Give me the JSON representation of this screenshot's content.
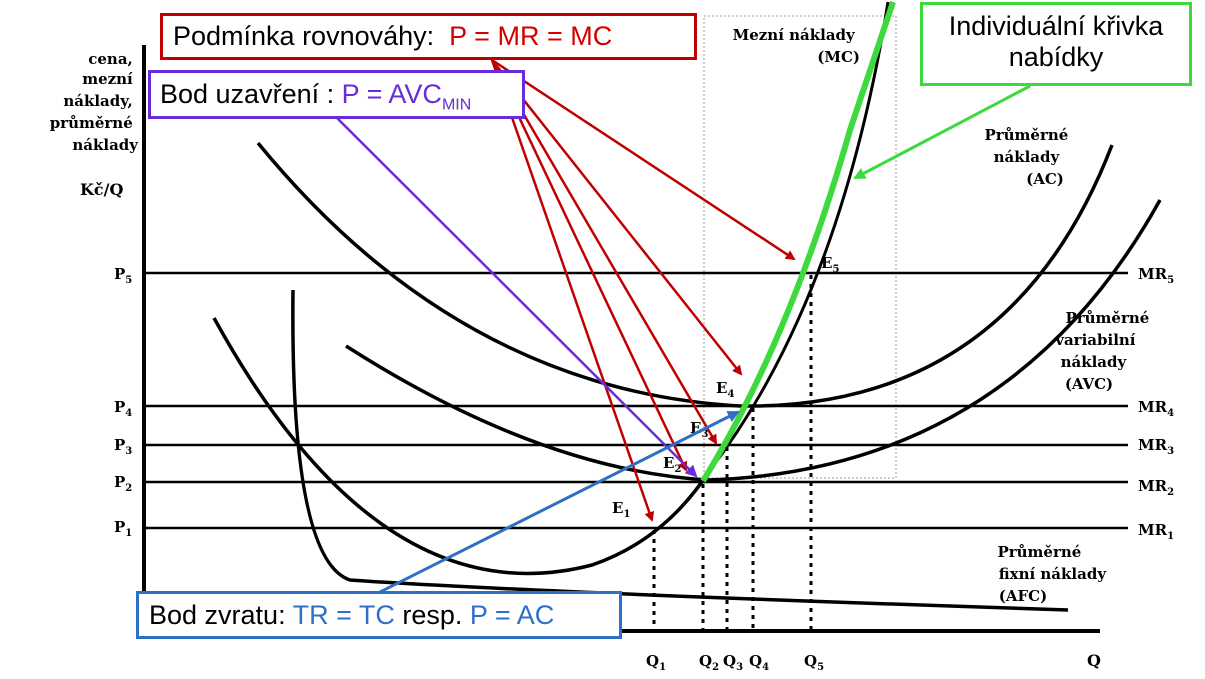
{
  "axes": {
    "y_label": [
      "cena,",
      "mezní",
      "náklady,",
      "průměrné",
      "náklady"
    ],
    "y_unit": "Kč/Q",
    "x_label": "Q"
  },
  "price_levels": [
    {
      "label": "P",
      "sub": "5",
      "mr": "MR",
      "mr_sub": "5",
      "level": 5
    },
    {
      "label": "P",
      "sub": "4",
      "mr": "MR",
      "mr_sub": "4",
      "level": 4
    },
    {
      "label": "P",
      "sub": "3",
      "mr": "MR",
      "mr_sub": "3",
      "level": 3
    },
    {
      "label": "P",
      "sub": "2",
      "mr": "MR",
      "mr_sub": "2",
      "level": 2
    },
    {
      "label": "P",
      "sub": "1",
      "mr": "MR",
      "mr_sub": "1",
      "level": 1
    }
  ],
  "quantities": [
    {
      "label": "Q",
      "sub": "1"
    },
    {
      "label": "Q",
      "sub": "2"
    },
    {
      "label": "Q",
      "sub": "3"
    },
    {
      "label": "Q",
      "sub": "4"
    },
    {
      "label": "Q",
      "sub": "5"
    }
  ],
  "equilibria": [
    {
      "label": "E",
      "sub": "1"
    },
    {
      "label": "E",
      "sub": "2"
    },
    {
      "label": "E",
      "sub": "3"
    },
    {
      "label": "E",
      "sub": "4"
    },
    {
      "label": "E",
      "sub": "5"
    }
  ],
  "curves": {
    "mc": [
      "Mezní náklady",
      "(MC)"
    ],
    "ac": [
      "Průměrné",
      "náklady",
      "(AC)"
    ],
    "avc": [
      "Průměrné",
      "variabilní",
      "náklady",
      "(AVC)"
    ],
    "afc": [
      "Průměrné",
      "fixní náklady",
      "(AFC)"
    ]
  },
  "boxes": {
    "equilibrium": {
      "prefix": "Podmínka rovnováhy:  ",
      "formula": "P = MR = MC"
    },
    "shutdown": {
      "prefix": "Bod uzavření : ",
      "formula": "P = AVC",
      "formula_sub": "MIN"
    },
    "break_even": {
      "prefix": "Bod zvratu: ",
      "formula1": "TR = TC",
      "middle": " resp. ",
      "formula2": "P = AC"
    },
    "supply": [
      "Individuální křivka",
      "nabídky"
    ]
  },
  "colors": {
    "equilibrium": "#c00000",
    "shutdown": "#6a2bd9",
    "break_even": "#2f6fc7",
    "supply": "#3dd93d"
  }
}
